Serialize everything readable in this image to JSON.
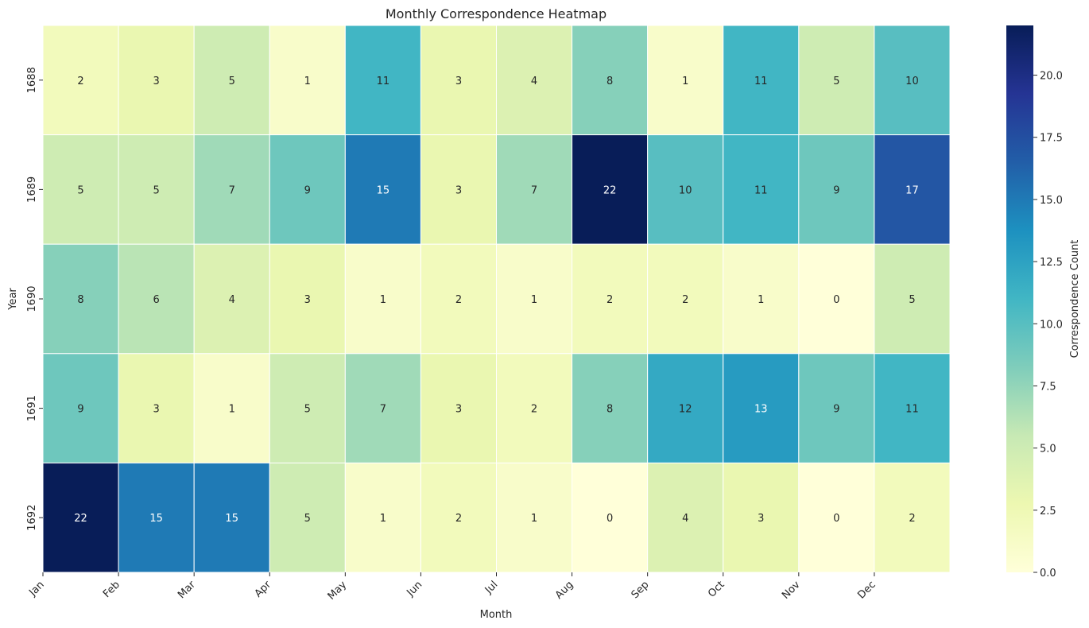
{
  "chart_data": {
    "type": "heatmap",
    "title": "Monthly Correspondence Heatmap",
    "xlabel": "Month",
    "ylabel": "Year",
    "x": [
      "Jan",
      "Feb",
      "Mar",
      "Apr",
      "May",
      "Jun",
      "Jul",
      "Aug",
      "Sep",
      "Oct",
      "Nov",
      "Dec"
    ],
    "y": [
      "1688",
      "1689",
      "1690",
      "1691",
      "1692"
    ],
    "values": [
      [
        2,
        3,
        5,
        1,
        11,
        3,
        4,
        8,
        1,
        11,
        5,
        10
      ],
      [
        5,
        5,
        7,
        9,
        15,
        3,
        7,
        22,
        10,
        11,
        9,
        17
      ],
      [
        8,
        6,
        4,
        3,
        1,
        2,
        1,
        2,
        2,
        1,
        0,
        5
      ],
      [
        9,
        3,
        1,
        5,
        7,
        3,
        2,
        8,
        12,
        13,
        9,
        11
      ],
      [
        22,
        15,
        15,
        5,
        1,
        2,
        1,
        0,
        4,
        3,
        0,
        2
      ]
    ],
    "colorbar": {
      "label": "Correspondence Count",
      "range": [
        0,
        22
      ],
      "ticks": [
        "0.0",
        "2.5",
        "5.0",
        "7.5",
        "10.0",
        "12.5",
        "15.0",
        "17.5",
        "20.0"
      ]
    },
    "colormap": "YlGnBu",
    "grid": false,
    "legend": "colorbar-right"
  }
}
